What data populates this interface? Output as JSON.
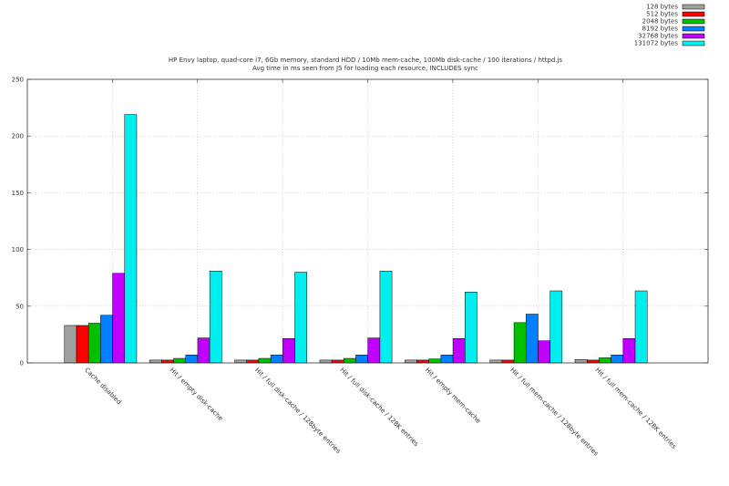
{
  "chart_data": {
    "type": "bar",
    "title": "HP Envy laptop, quad-core i7, 6Gb memory, standard HDD / 10Mb mem-cache, 100Mb disk-cache / 100 iterations / httpd.js",
    "subtitle": "Avg time in ms seen from JS for loading each resource, INCLUDES sync",
    "xlabel": "",
    "ylabel": "",
    "ylim": [
      0,
      250
    ],
    "yticks": [
      0,
      50,
      100,
      150,
      200,
      250
    ],
    "grid": true,
    "legend_position": "top-right",
    "categories": [
      "Cache disabled",
      "Hit / empty disk-cache",
      "Hit / full disk-cache / 128byte entries",
      "Hit / full disk-cache / 128K entries",
      "Hit / empty mem-cache",
      "Hit / full mem-cache / 128byte entries",
      "Hit / full mem-cache / 128K entries"
    ],
    "series": [
      {
        "name": "128 bytes",
        "color": "#a0a0a0",
        "values": [
          33,
          2.5,
          2.5,
          2.5,
          2.5,
          2.5,
          3
        ]
      },
      {
        "name": "512 bytes",
        "color": "#ff0000",
        "values": [
          33,
          2.5,
          2.5,
          2.5,
          2.5,
          2.5,
          2.5
        ]
      },
      {
        "name": "2048 bytes",
        "color": "#00c000",
        "values": [
          35,
          4,
          4,
          4,
          3.5,
          35.5,
          4.5
        ]
      },
      {
        "name": "8192 bytes",
        "color": "#0080ff",
        "values": [
          42,
          7,
          7,
          7,
          7,
          43,
          7
        ]
      },
      {
        "name": "32768 bytes",
        "color": "#c000ff",
        "values": [
          79,
          22,
          21.5,
          22,
          21.5,
          19.5,
          21.5
        ]
      },
      {
        "name": "131072 bytes",
        "color": "#00eeee",
        "values": [
          219,
          81,
          80,
          81,
          62.5,
          63.5,
          63.5
        ]
      }
    ]
  }
}
